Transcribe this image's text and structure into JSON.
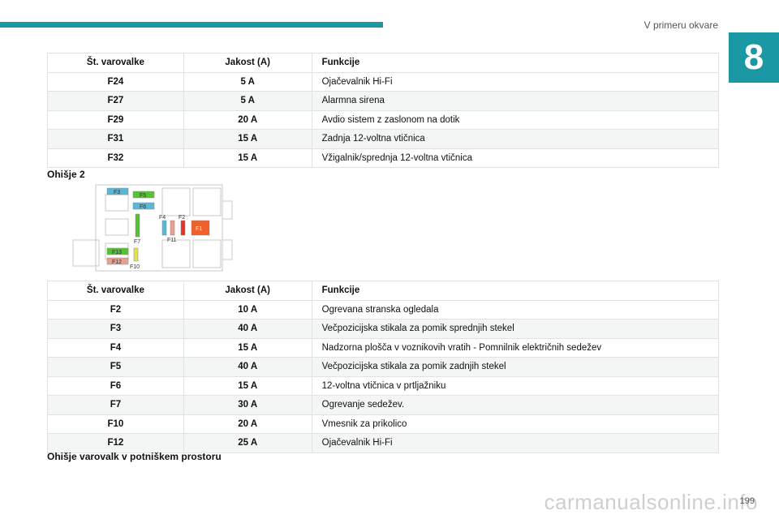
{
  "header": {
    "chapter_title": "V primeru okvare",
    "chapter_number": "8"
  },
  "table1": {
    "headers": [
      "Št. varovalke",
      "Jakost (A)",
      "Funkcije"
    ],
    "rows": [
      [
        "F24",
        "5 A",
        "Ojačevalnik Hi-Fi"
      ],
      [
        "F27",
        "5 A",
        "Alarmna sirena"
      ],
      [
        "F29",
        "20 A",
        "Avdio sistem z zaslonom na dotik"
      ],
      [
        "F31",
        "15 A",
        "Zadnja 12-voltna vtičnica"
      ],
      [
        "F32",
        "15 A",
        "Vžigalnik/sprednja 12-voltna vtičnica"
      ]
    ]
  },
  "section2_label": "Ohišje 2",
  "diagram": {
    "labels": {
      "f3": "F3",
      "f5": "F5",
      "f6": "F6",
      "f4": "F4",
      "f2": "F2",
      "f1": "F1",
      "f11": "F11",
      "f7": "F7",
      "f13": "F13",
      "f12": "F12",
      "f10": "F10"
    },
    "colors": {
      "blue": "#5ab8d4",
      "green": "#55c232",
      "salmon": "#e8a090",
      "red": "#e8322a",
      "orange": "#f0602a",
      "yellow": "#e7e04a"
    }
  },
  "table2": {
    "headers": [
      "Št. varovalke",
      "Jakost (A)",
      "Funkcije"
    ],
    "rows": [
      [
        "F2",
        "10 A",
        "Ogrevana stranska ogledala"
      ],
      [
        "F3",
        "40 A",
        "Večpozicijska stikala za pomik sprednjih stekel"
      ],
      [
        "F4",
        "15 A",
        "Nadzorna plošča v voznikovih vratih - Pomnilnik električnih sedežev"
      ],
      [
        "F5",
        "40 A",
        "Večpozicijska stikala za pomik zadnjih stekel"
      ],
      [
        "F6",
        "15 A",
        "12-voltna vtičnica v prtljažniku"
      ],
      [
        "F7",
        "30 A",
        "Ogrevanje sedežev."
      ],
      [
        "F10",
        "20 A",
        "Vmesnik za prikolico"
      ],
      [
        "F12",
        "25 A",
        "Ojačevalnik Hi-Fi"
      ]
    ]
  },
  "section3_label": "Ohišje varovalk v potniškem prostoru",
  "footer": {
    "page_number": "199",
    "watermark": "carmanualsonline.info"
  }
}
